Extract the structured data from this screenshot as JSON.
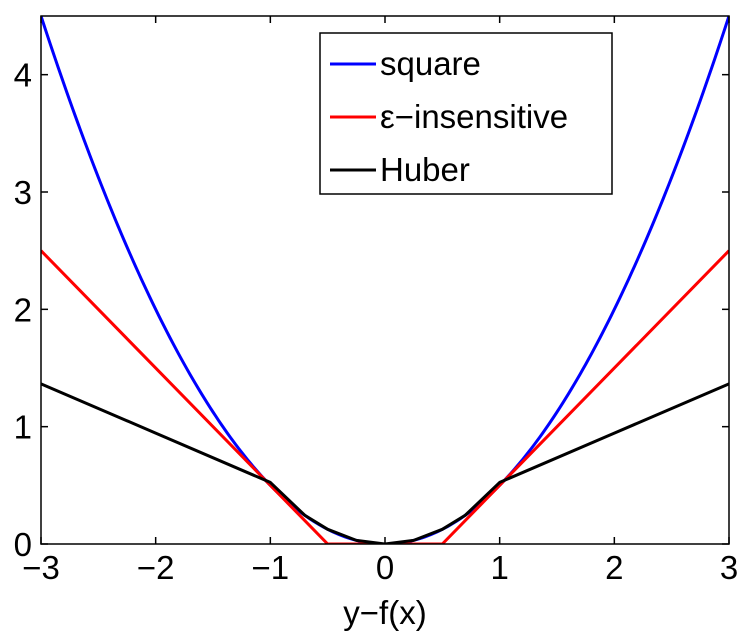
{
  "chart_data": {
    "type": "line",
    "title": "",
    "xlabel": "y−f(x)",
    "ylabel": "",
    "xlim": [
      -3,
      3
    ],
    "ylim": [
      0,
      4.5
    ],
    "xticks": [
      -3,
      -2,
      -1,
      0,
      1,
      2,
      3
    ],
    "xtick_labels": [
      "−3",
      "−2",
      "−1",
      "0",
      "1",
      "2",
      "3"
    ],
    "yticks": [
      0,
      1,
      2,
      3,
      4
    ],
    "ytick_labels": [
      "0",
      "1",
      "2",
      "3",
      "4"
    ],
    "grid": false,
    "legend_position": "top-right",
    "series": [
      {
        "name": "square",
        "color": "#0000ff",
        "x": [
          -3,
          -2.5,
          -2,
          -1.5,
          -1,
          -0.5,
          0,
          0.5,
          1,
          1.5,
          2,
          2.5,
          3
        ],
        "y": [
          4.5,
          3.125,
          2,
          1.125,
          0.5,
          0.125,
          0,
          0.125,
          0.5,
          1.125,
          2,
          3.125,
          4.5
        ]
      },
      {
        "name": "ε−insensitive",
        "color": "#ff0000",
        "x": [
          -3,
          -0.5,
          0.5,
          3
        ],
        "y": [
          2.5,
          0,
          0,
          2.5
        ]
      },
      {
        "name": "Huber",
        "color": "#000000",
        "x": [
          -3,
          -2,
          -1,
          -0.7,
          -0.5,
          -0.25,
          0,
          0.25,
          0.5,
          0.7,
          1,
          2,
          3
        ],
        "y": [
          1.365,
          0.945,
          0.525,
          0.245,
          0.125,
          0.031,
          0,
          0.031,
          0.125,
          0.245,
          0.525,
          0.945,
          1.365
        ]
      }
    ]
  }
}
